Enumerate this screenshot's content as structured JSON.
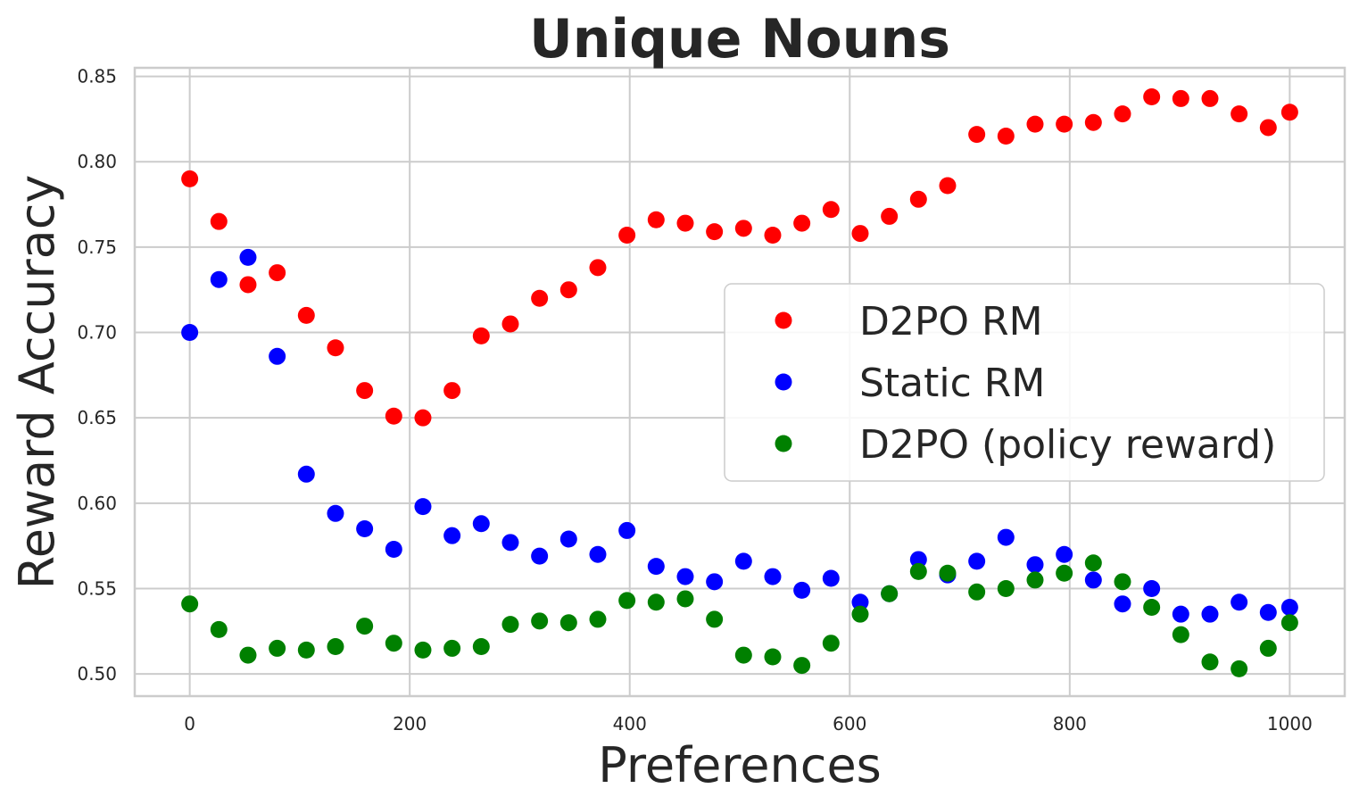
{
  "chart_data": {
    "type": "scatter",
    "title": "Unique Nouns",
    "xlabel": "Preferences",
    "ylabel": "Reward Accuracy",
    "xlim": [
      -50,
      1050
    ],
    "ylim": [
      0.487,
      0.855
    ],
    "xticks": [
      0,
      200,
      400,
      600,
      800,
      1000
    ],
    "xtick_labels": [
      "0",
      "200",
      "400",
      "600",
      "800",
      "1000"
    ],
    "yticks": [
      0.5,
      0.55,
      0.6,
      0.65,
      0.7,
      0.75,
      0.8,
      0.85
    ],
    "ytick_labels": [
      "0.50",
      "0.55",
      "0.60",
      "0.65",
      "0.70",
      "0.75",
      "0.80",
      "0.85"
    ],
    "grid": true,
    "legend_position": "center-right",
    "x": [
      0,
      26.5,
      53,
      79.5,
      106,
      132.5,
      159,
      185.5,
      212,
      238.5,
      265,
      291.5,
      318,
      344.5,
      371,
      397.5,
      424,
      450.5,
      477,
      503.5,
      530,
      556.5,
      583,
      609.5,
      636,
      662.5,
      689,
      715.5,
      742,
      768.5,
      795,
      821.5,
      848,
      874.5,
      901,
      927.5,
      954,
      980.5,
      1000
    ],
    "series": [
      {
        "name": "D2PO RM",
        "color": "#ff0000",
        "values": [
          0.79,
          0.765,
          0.728,
          0.735,
          0.71,
          0.691,
          0.666,
          0.651,
          0.65,
          0.666,
          0.698,
          0.705,
          0.72,
          0.725,
          0.738,
          0.757,
          0.766,
          0.764,
          0.759,
          0.761,
          0.757,
          0.764,
          0.772,
          0.758,
          0.768,
          0.778,
          0.786,
          0.816,
          0.815,
          0.822,
          0.822,
          0.823,
          0.828,
          0.838,
          0.837,
          0.837,
          0.828,
          0.82,
          0.829
        ]
      },
      {
        "name": "Static RM",
        "color": "#0000ff",
        "values": [
          0.7,
          0.731,
          0.744,
          0.686,
          0.617,
          0.594,
          0.585,
          0.573,
          0.598,
          0.581,
          0.588,
          0.577,
          0.569,
          0.579,
          0.57,
          0.584,
          0.563,
          0.557,
          0.554,
          0.566,
          0.557,
          0.549,
          0.556,
          0.542,
          0.547,
          0.567,
          0.558,
          0.566,
          0.58,
          0.564,
          0.57,
          0.555,
          0.541,
          0.55,
          0.535,
          0.535,
          0.542,
          0.536,
          0.539
        ]
      },
      {
        "name": "D2PO (policy reward)",
        "color": "#008000",
        "values": [
          0.541,
          0.526,
          0.511,
          0.515,
          0.514,
          0.516,
          0.528,
          0.518,
          0.514,
          0.515,
          0.516,
          0.529,
          0.531,
          0.53,
          0.532,
          0.543,
          0.542,
          0.544,
          0.532,
          0.511,
          0.51,
          0.505,
          0.518,
          0.535,
          0.547,
          0.56,
          0.559,
          0.548,
          0.55,
          0.555,
          0.559,
          0.565,
          0.554,
          0.539,
          0.523,
          0.507,
          0.503,
          0.515,
          0.53
        ]
      }
    ]
  }
}
